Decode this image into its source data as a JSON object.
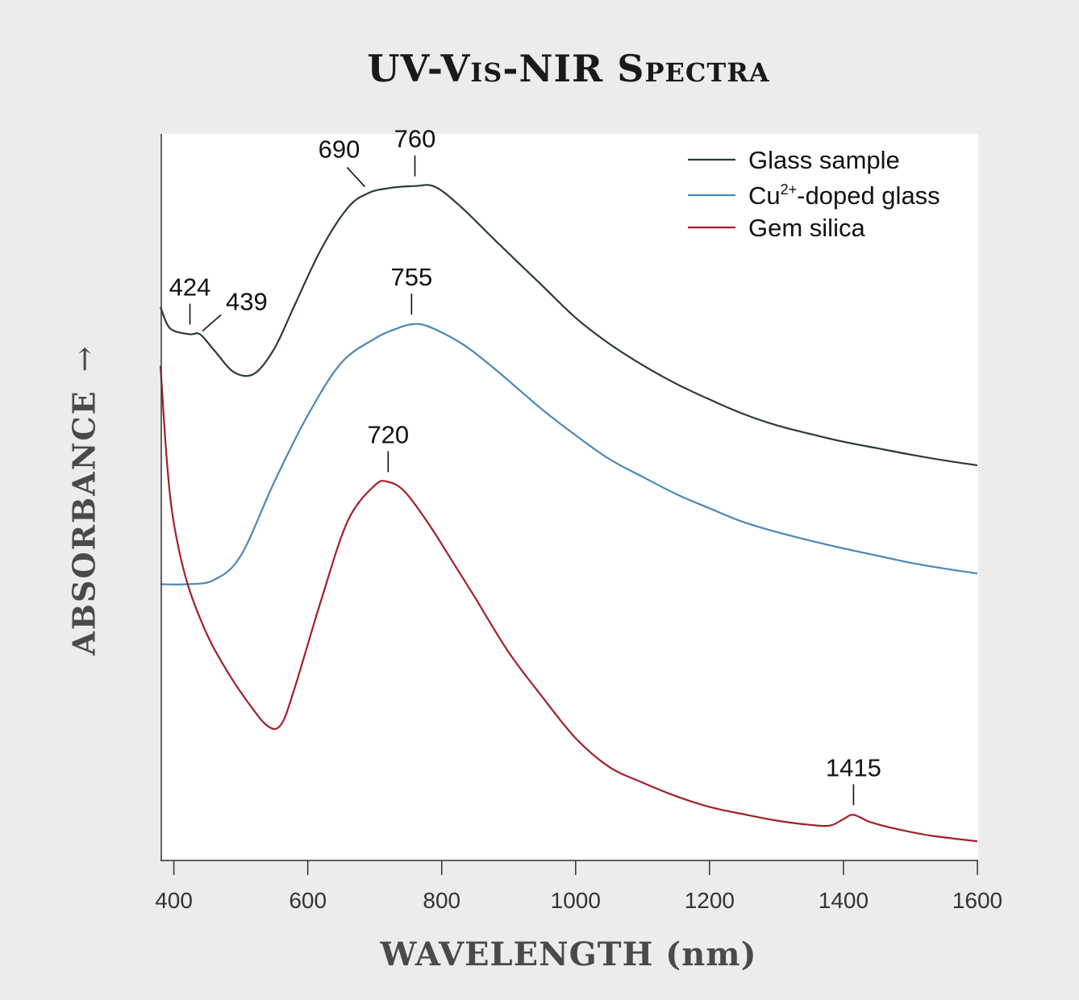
{
  "chart_data": {
    "type": "line",
    "title": "UV-Vis-NIR Spectra",
    "xlabel": "WAVELENGTH (nm)",
    "ylabel": "ABSORBANCE",
    "ylabel_arrow": "→",
    "xlim": [
      380,
      1600
    ],
    "ylim": [
      0,
      100
    ],
    "x_ticks": [
      400,
      600,
      800,
      1000,
      1200,
      1400,
      1600
    ],
    "y_ticks": [],
    "legend_position": "top-right",
    "series": [
      {
        "name": "Glass sample",
        "color": "#2b3a3a",
        "points": [
          [
            380,
            75.7
          ],
          [
            390,
            73.3
          ],
          [
            400,
            72.4
          ],
          [
            424,
            71.9
          ],
          [
            439,
            71.9
          ],
          [
            460,
            69.7
          ],
          [
            490,
            66.6
          ],
          [
            520,
            66.4
          ],
          [
            550,
            69.9
          ],
          [
            580,
            75.9
          ],
          [
            620,
            83.8
          ],
          [
            660,
            89.6
          ],
          [
            690,
            91.6
          ],
          [
            720,
            92.3
          ],
          [
            760,
            92.6
          ],
          [
            790,
            92.5
          ],
          [
            830,
            89.6
          ],
          [
            880,
            85.0
          ],
          [
            950,
            78.7
          ],
          [
            1000,
            74.2
          ],
          [
            1050,
            70.6
          ],
          [
            1100,
            67.6
          ],
          [
            1150,
            65.0
          ],
          [
            1200,
            62.8
          ],
          [
            1250,
            60.8
          ],
          [
            1300,
            59.2
          ],
          [
            1350,
            58.0
          ],
          [
            1400,
            56.9
          ],
          [
            1450,
            56.0
          ],
          [
            1500,
            55.1
          ],
          [
            1550,
            54.3
          ],
          [
            1600,
            53.6
          ]
        ]
      },
      {
        "name": "Cu2+-doped glass",
        "legend_base": "Cu",
        "legend_sup": "2+",
        "legend_rest": "-doped glass",
        "color": "#4b87b8",
        "points": [
          [
            380,
            37.0
          ],
          [
            420,
            37.0
          ],
          [
            460,
            37.6
          ],
          [
            500,
            41.0
          ],
          [
            550,
            51.3
          ],
          [
            600,
            60.6
          ],
          [
            650,
            67.9
          ],
          [
            700,
            71.3
          ],
          [
            730,
            72.6
          ],
          [
            755,
            73.3
          ],
          [
            780,
            73.0
          ],
          [
            830,
            70.6
          ],
          [
            880,
            67.0
          ],
          [
            950,
            61.4
          ],
          [
            1000,
            57.8
          ],
          [
            1050,
            54.5
          ],
          [
            1100,
            52.0
          ],
          [
            1150,
            49.6
          ],
          [
            1200,
            47.6
          ],
          [
            1250,
            45.7
          ],
          [
            1300,
            44.3
          ],
          [
            1350,
            43.1
          ],
          [
            1400,
            42.0
          ],
          [
            1450,
            41.0
          ],
          [
            1500,
            40.0
          ],
          [
            1550,
            39.2
          ],
          [
            1600,
            38.5
          ]
        ]
      },
      {
        "name": "Gem silica",
        "color": "#a31f2b",
        "points": [
          [
            380,
            67.5
          ],
          [
            390,
            53.7
          ],
          [
            400,
            45.5
          ],
          [
            420,
            37.2
          ],
          [
            450,
            29.9
          ],
          [
            480,
            24.8
          ],
          [
            510,
            20.6
          ],
          [
            540,
            17.2
          ],
          [
            560,
            17.4
          ],
          [
            580,
            22.4
          ],
          [
            620,
            34.8
          ],
          [
            660,
            45.9
          ],
          [
            700,
            50.8
          ],
          [
            720,
            51.3
          ],
          [
            745,
            49.9
          ],
          [
            780,
            45.5
          ],
          [
            820,
            39.6
          ],
          [
            850,
            35.1
          ],
          [
            900,
            27.5
          ],
          [
            950,
            21.3
          ],
          [
            1000,
            15.5
          ],
          [
            1050,
            11.5
          ],
          [
            1100,
            9.3
          ],
          [
            1150,
            7.4
          ],
          [
            1200,
            5.9
          ],
          [
            1250,
            4.9
          ],
          [
            1300,
            4.0
          ],
          [
            1350,
            3.4
          ],
          [
            1380,
            3.3
          ],
          [
            1400,
            4.2
          ],
          [
            1415,
            4.8
          ],
          [
            1440,
            3.8
          ],
          [
            1480,
            2.8
          ],
          [
            1530,
            1.9
          ],
          [
            1600,
            1.1
          ]
        ]
      }
    ],
    "annotations": [
      {
        "label": "424",
        "series": 0,
        "x": 424,
        "style": "tick"
      },
      {
        "label": "439",
        "series": 0,
        "x": 439,
        "style": "diag-right"
      },
      {
        "label": "690",
        "series": 0,
        "x": 690,
        "style": "diag-left"
      },
      {
        "label": "760",
        "series": 0,
        "x": 760,
        "style": "tick"
      },
      {
        "label": "755",
        "series": 1,
        "x": 755,
        "style": "tick"
      },
      {
        "label": "720",
        "series": 2,
        "x": 720,
        "style": "tick"
      },
      {
        "label": "1415",
        "series": 2,
        "x": 1415,
        "style": "tick"
      }
    ]
  }
}
